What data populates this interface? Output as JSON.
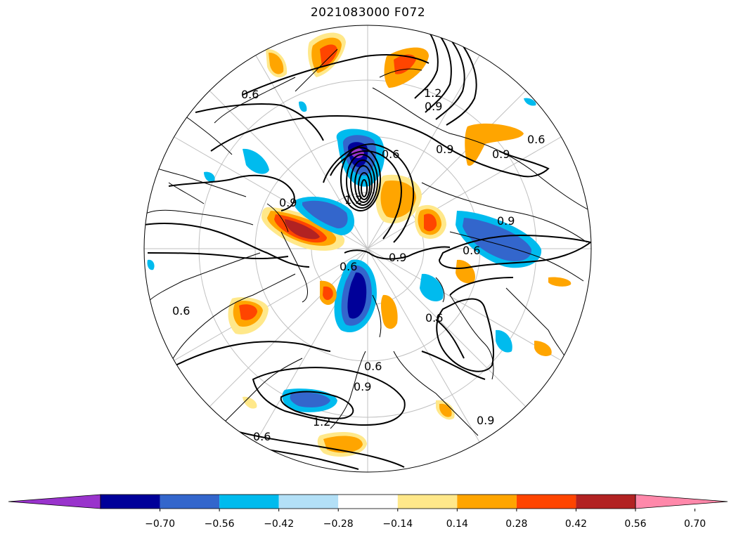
{
  "title": "2021083000 F072",
  "colorbar": {
    "levels": [
      "−0.70",
      "−0.56",
      "−0.42",
      "−0.28",
      "−0.14",
      "0.14",
      "0.28",
      "0.42",
      "0.56",
      "0.70"
    ],
    "colors": [
      "#9933cc",
      "#000099",
      "#3366cc",
      "#00bbee",
      "#b3e0f7",
      "#ffffff",
      "#ffe88a",
      "#ffa500",
      "#ff4500",
      "#b22222",
      "#ff88aa"
    ]
  },
  "palette": {
    "neg_strong": "#000099",
    "neg_mid": "#3366cc",
    "neg_weak": "#00bbee",
    "neg_faint": "#b3e0f7",
    "pos_faint": "#ffe88a",
    "pos_weak": "#ffa500",
    "pos_mid": "#ff4500",
    "pos_strong": "#b22222",
    "extreme_neg": "#9933cc"
  },
  "contour_labels": [
    "0.6",
    "0.9",
    "1.2",
    "0.6",
    "0.9",
    "0.9",
    "0.6",
    "0.9",
    "0.6",
    "0.6",
    "0.9",
    "0.6",
    "0.9",
    "1.2",
    "0.6",
    "0.6",
    "0.9",
    "0.6",
    "1.2",
    "0.9"
  ]
}
